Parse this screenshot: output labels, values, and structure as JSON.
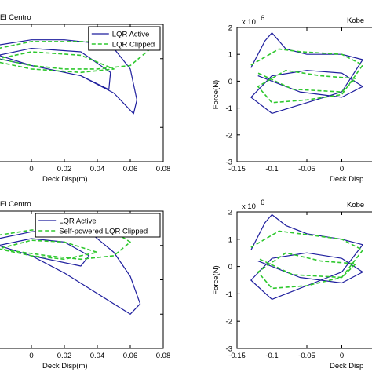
{
  "chart_data": [
    {
      "type": "line",
      "title": "El Centro",
      "xlabel": "Deck Disp(m)",
      "ylabel": "",
      "xlim": [
        -0.02,
        0.08
      ],
      "ylim": [
        -3,
        1
      ],
      "xticks": [
        "0",
        "0.02",
        "0.04",
        "0.06",
        "0.08"
      ],
      "yticks": [],
      "legend": "top-right",
      "series": [
        {
          "name": "LQR Active",
          "color": "#1f1f9e",
          "style": "solid",
          "x": [
            -0.02,
            0.0,
            0.02,
            0.04,
            0.05,
            0.06,
            0.064,
            0.062,
            0.05,
            0.03,
            0.0,
            -0.02,
            0.0,
            0.03,
            0.048,
            0.047,
            0.03,
            0.0,
            -0.02
          ],
          "y": [
            0.4,
            0.55,
            0.55,
            0.45,
            0.3,
            -0.3,
            -1.2,
            -1.6,
            -1.0,
            -0.5,
            -0.2,
            0.1,
            0.3,
            0.2,
            -0.4,
            -0.9,
            -0.5,
            -0.2,
            0.0
          ]
        },
        {
          "name": "LQR Clipped",
          "color": "#2ec82e",
          "style": "dashed",
          "x": [
            -0.02,
            0.0,
            0.03,
            0.06,
            0.075,
            0.06,
            0.04,
            0.02,
            0.0,
            -0.02,
            0.0,
            0.03,
            0.05,
            0.03,
            0.0,
            -0.02
          ],
          "y": [
            0.3,
            0.5,
            0.5,
            0.45,
            0.4,
            -0.2,
            -0.3,
            -0.3,
            -0.2,
            0.0,
            0.2,
            0.1,
            -0.3,
            -0.4,
            -0.3,
            -0.1
          ]
        }
      ]
    },
    {
      "type": "line",
      "title": "Kobe",
      "xlabel": "Deck Disp",
      "ylabel": "Force(N)",
      "y_exponent": "x 10^6",
      "xlim": [
        -0.15,
        0.05
      ],
      "ylim": [
        -3,
        2
      ],
      "xticks": [
        "-0.15",
        "-0.1",
        "-0.05",
        "0"
      ],
      "yticks": [
        "2",
        "1",
        "0",
        "-1",
        "-2",
        "-3"
      ],
      "legend": "none",
      "series": [
        {
          "name": "LQR Active",
          "color": "#1f1f9e",
          "style": "solid",
          "x": [
            -0.13,
            -0.11,
            -0.1,
            -0.08,
            -0.05,
            0.0,
            0.03,
            0.0,
            -0.05,
            -0.1,
            -0.13,
            -0.1,
            -0.05,
            0.0,
            0.03,
            0.0,
            -0.06,
            -0.12
          ],
          "y": [
            0.5,
            1.5,
            1.8,
            1.2,
            1.0,
            1.0,
            0.8,
            -0.4,
            -0.8,
            -1.2,
            -0.6,
            0.2,
            0.4,
            0.3,
            -0.2,
            -0.6,
            -0.4,
            0.2
          ]
        },
        {
          "name": "LQR Clipped",
          "color": "#2ec82e",
          "style": "dashed",
          "x": [
            -0.13,
            -0.09,
            -0.06,
            0.0,
            0.03,
            0.0,
            -0.05,
            -0.1,
            -0.12,
            -0.08,
            -0.03,
            0.02,
            0.0,
            -0.07,
            -0.12
          ],
          "y": [
            0.6,
            1.2,
            1.1,
            1.0,
            0.6,
            -0.5,
            -0.7,
            -0.8,
            -0.2,
            0.4,
            0.2,
            0.1,
            -0.4,
            -0.3,
            0.3
          ]
        }
      ]
    },
    {
      "type": "line",
      "title": "El Centro",
      "xlabel": "Deck Disp(m)",
      "ylabel": "",
      "xlim": [
        -0.02,
        0.08
      ],
      "ylim": [
        -3,
        1
      ],
      "xticks": [
        "0",
        "0.02",
        "0.04",
        "0.06",
        "0.08"
      ],
      "yticks": [],
      "legend": "top-right",
      "series": [
        {
          "name": "LQR Active",
          "color": "#1f1f9e",
          "style": "solid",
          "x": [
            -0.02,
            0.0,
            0.02,
            0.035,
            0.05,
            0.06,
            0.066,
            0.06,
            0.04,
            0.02,
            0.0,
            -0.02,
            0.0,
            0.02,
            0.035,
            0.03,
            0.0,
            -0.02
          ],
          "y": [
            0.2,
            0.4,
            0.5,
            0.4,
            -0.2,
            -0.9,
            -1.7,
            -2.0,
            -1.4,
            -0.8,
            -0.3,
            0.0,
            0.2,
            0.1,
            -0.3,
            -0.6,
            -0.3,
            0.0
          ]
        },
        {
          "name": "Self-powered LQR Clipped",
          "color": "#2ec82e",
          "style": "dashed",
          "x": [
            -0.02,
            0.0,
            0.03,
            0.05,
            0.06,
            0.05,
            0.03,
            0.01,
            -0.02,
            0.0,
            0.02,
            0.04,
            0.02,
            0.0,
            -0.02
          ],
          "y": [
            0.3,
            0.45,
            0.5,
            0.4,
            0.1,
            -0.3,
            -0.4,
            -0.3,
            -0.1,
            0.15,
            0.1,
            -0.2,
            -0.4,
            -0.3,
            -0.1
          ]
        }
      ]
    },
    {
      "type": "line",
      "title": "Kobe",
      "xlabel": "Deck Disp",
      "ylabel": "Force(N)",
      "y_exponent": "x 10^6",
      "xlim": [
        -0.15,
        0.05
      ],
      "ylim": [
        -3,
        2
      ],
      "xticks": [
        "-0.15",
        "-0.1",
        "-0.05",
        "0"
      ],
      "yticks": [
        "2",
        "1",
        "0",
        "-1",
        "-2",
        "-3"
      ],
      "legend": "none",
      "series": [
        {
          "name": "LQR Active",
          "color": "#1f1f9e",
          "style": "solid",
          "x": [
            -0.13,
            -0.11,
            -0.1,
            -0.08,
            -0.05,
            0.0,
            0.03,
            0.0,
            -0.05,
            -0.1,
            -0.13,
            -0.1,
            -0.05,
            0.0,
            0.03,
            0.0,
            -0.06,
            -0.12
          ],
          "y": [
            0.6,
            1.6,
            1.9,
            1.5,
            1.2,
            1.0,
            0.8,
            -0.2,
            -0.7,
            -1.2,
            -0.5,
            0.3,
            0.5,
            0.3,
            -0.2,
            -0.6,
            -0.4,
            0.2
          ]
        },
        {
          "name": "Self-powered LQR Clipped",
          "color": "#2ec82e",
          "style": "dashed",
          "x": [
            -0.13,
            -0.09,
            -0.06,
            0.0,
            0.03,
            0.0,
            -0.05,
            -0.1,
            -0.12,
            -0.08,
            -0.03,
            0.02,
            0.0,
            -0.07,
            -0.12
          ],
          "y": [
            0.7,
            1.3,
            1.2,
            1.0,
            0.6,
            -0.4,
            -0.7,
            -0.8,
            -0.2,
            0.5,
            0.2,
            0.1,
            -0.4,
            -0.3,
            0.3
          ]
        }
      ]
    }
  ]
}
